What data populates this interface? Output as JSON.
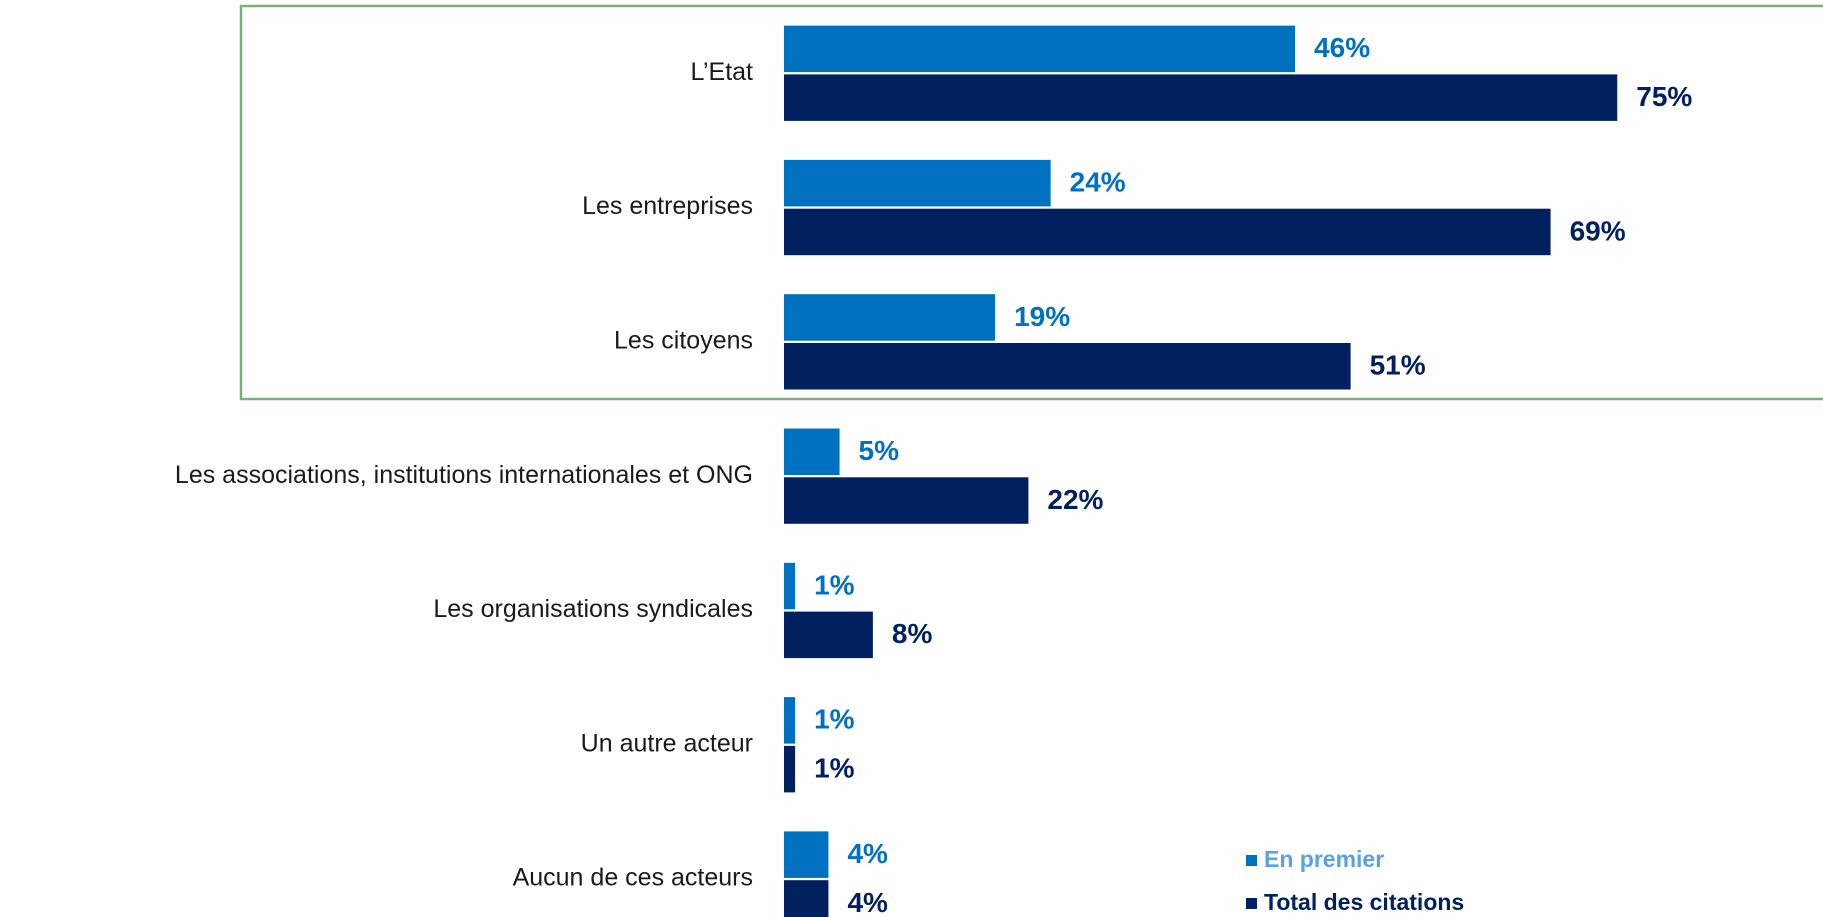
{
  "chart_data": {
    "type": "bar",
    "orientation": "horizontal",
    "categories": [
      "L’Etat",
      "Les entreprises",
      "Les citoyens",
      "Les associations, institutions internationales et ONG",
      "Les organisations syndicales",
      "Un autre acteur",
      "Aucun de ces acteurs"
    ],
    "series": [
      {
        "name": "En premier",
        "color": "#0070c0",
        "legend_text_color": "#5ba3e0",
        "values": [
          46,
          24,
          19,
          5,
          1,
          1,
          4
        ],
        "value_labels": [
          "46%",
          "24%",
          "19%",
          "5%",
          "1%",
          "1%",
          "4%"
        ]
      },
      {
        "name": "Total des citations",
        "color": "#002060",
        "legend_text_color": "#002060",
        "values": [
          75,
          69,
          51,
          22,
          8,
          1,
          4
        ],
        "value_labels": [
          "75%",
          "69%",
          "51%",
          "22%",
          "8%",
          "1%",
          "4%"
        ]
      }
    ]
  }
}
